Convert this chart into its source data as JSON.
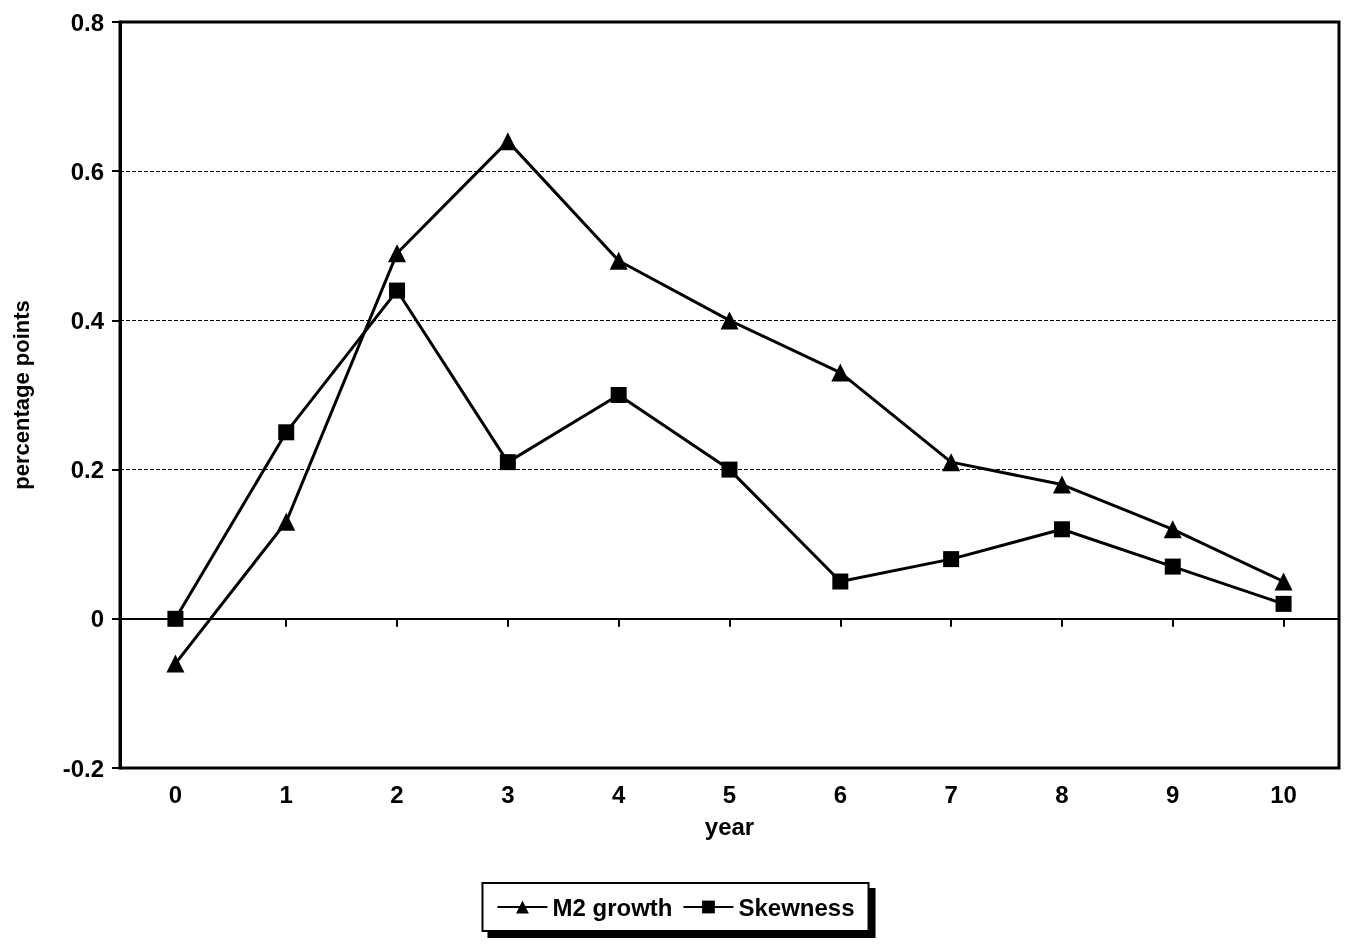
{
  "chart_data": {
    "type": "line",
    "xlabel": "year",
    "ylabel": "percentage points",
    "categories": [
      "0",
      "1",
      "2",
      "3",
      "4",
      "5",
      "6",
      "7",
      "8",
      "9",
      "10"
    ],
    "series": [
      {
        "name": "M2 growth",
        "color": "#000000",
        "marker": "triangle",
        "values": [
          -0.06,
          0.13,
          0.49,
          0.64,
          0.48,
          0.4,
          0.33,
          0.21,
          0.18,
          0.12,
          0.05
        ]
      },
      {
        "name": "Skewness",
        "color": "#000000",
        "marker": "square",
        "values": [
          0,
          0.25,
          0.44,
          0.21,
          0.3,
          0.2,
          0.05,
          0.08,
          0.12,
          0.07,
          0.02
        ]
      }
    ],
    "ylim": [
      -0.2,
      0.8
    ],
    "yticks": [
      -0.2,
      0,
      0.2,
      0.4,
      0.6,
      0.8
    ],
    "ref_lines": [
      {
        "axis": "y",
        "value": 0,
        "color": "#000000",
        "line_style": "solid"
      }
    ],
    "grid": "y",
    "legend": "bottom"
  }
}
